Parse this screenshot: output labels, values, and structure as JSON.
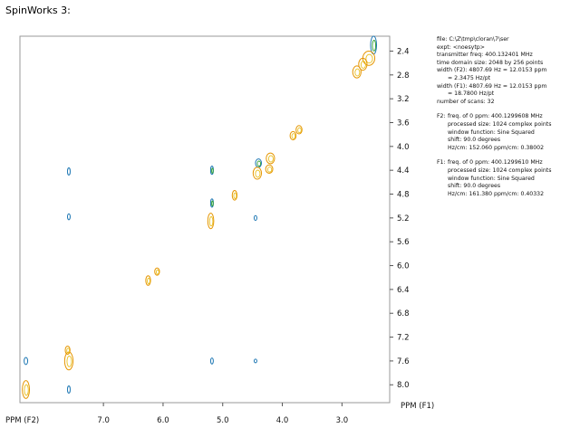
{
  "window": {
    "title": "SpinWorks 3:"
  },
  "colors": {
    "positive": "#1f78b4",
    "positive2": "#2ca02c",
    "negative": "#e69500",
    "negative2": "#e8c020",
    "frame": "#999999"
  },
  "info": {
    "file": "file: C:\\Z\\tmp\\cloran\\7\\ser",
    "expt": "expt: <noesytp>",
    "transmitter": "transmitter freq: 400.132401 MHz",
    "time_domain": "time domain size: 2048 by 256 points",
    "width_f2": "width (F2): 4807.69 Hz = 12.0153 ppm",
    "width_f2_pt": "= 2.3475 Hz/pt",
    "width_f1": "width (F1): 4807.69 Hz = 12.0153 ppm",
    "width_f1_pt": "= 18.7800 Hz/pt",
    "scans": "number of scans: 32",
    "f2": {
      "prefix": "F2:",
      "freq": "freq. of 0 ppm: 400.1299608 MHz",
      "size": "processed size: 1024 complex points",
      "window": "window function: Sine Squared",
      "shift": "shift: 90.0 degrees",
      "hzcm": "Hz/cm: 152.060    ppm/cm: 0.38002"
    },
    "f1": {
      "prefix": "F1:",
      "freq": "freq. of 0 ppm: 400.1299610 MHz",
      "size": "processed size: 1024 complex points",
      "window": "window function: Sine Squared",
      "shift": "shift: 90.0 degrees",
      "hzcm": "Hz/cm: 161.380    ppm/cm: 0.40332"
    }
  },
  "chart_data": {
    "type": "contour",
    "xlabel": "PPM (F2)",
    "ylabel": "PPM (F1)",
    "xlim": [
      8.4,
      2.2
    ],
    "ylim": [
      2.15,
      8.3
    ],
    "xticks": [
      "7.0",
      "6.0",
      "5.0",
      "4.0",
      "3.0"
    ],
    "xtick_values": [
      7.0,
      6.0,
      5.0,
      4.0,
      3.0
    ],
    "yticks": [
      "2.4",
      "2.8",
      "3.2",
      "3.6",
      "4.0",
      "4.4",
      "4.8",
      "5.2",
      "5.6",
      "6.0",
      "6.4",
      "6.8",
      "7.2",
      "7.6",
      "8.0"
    ],
    "ytick_values": [
      2.4,
      2.8,
      3.2,
      3.6,
      4.0,
      4.4,
      4.8,
      5.2,
      5.6,
      6.0,
      6.4,
      6.8,
      7.2,
      7.6,
      8.0
    ],
    "peaks": [
      {
        "x": 2.47,
        "y": 2.3,
        "sign": "pos",
        "rx": 0.05,
        "ry": 0.15
      },
      {
        "x": 2.55,
        "y": 2.52,
        "sign": "neg",
        "rx": 0.1,
        "ry": 0.12
      },
      {
        "x": 2.65,
        "y": 2.62,
        "sign": "neg",
        "rx": 0.07,
        "ry": 0.1
      },
      {
        "x": 2.75,
        "y": 2.75,
        "sign": "neg",
        "rx": 0.07,
        "ry": 0.1
      },
      {
        "x": 3.72,
        "y": 3.72,
        "sign": "neg",
        "rx": 0.05,
        "ry": 0.07
      },
      {
        "x": 3.82,
        "y": 3.82,
        "sign": "neg",
        "rx": 0.05,
        "ry": 0.07
      },
      {
        "x": 4.2,
        "y": 4.2,
        "sign": "neg",
        "rx": 0.07,
        "ry": 0.09
      },
      {
        "x": 4.22,
        "y": 4.38,
        "sign": "neg",
        "rx": 0.06,
        "ry": 0.07
      },
      {
        "x": 4.4,
        "y": 4.28,
        "sign": "pos",
        "rx": 0.05,
        "ry": 0.07
      },
      {
        "x": 4.42,
        "y": 4.45,
        "sign": "neg",
        "rx": 0.07,
        "ry": 0.1
      },
      {
        "x": 4.8,
        "y": 4.82,
        "sign": "neg",
        "rx": 0.04,
        "ry": 0.08
      },
      {
        "x": 5.18,
        "y": 4.4,
        "sign": "pos",
        "rx": 0.02,
        "ry": 0.07
      },
      {
        "x": 5.18,
        "y": 4.95,
        "sign": "pos",
        "rx": 0.02,
        "ry": 0.07
      },
      {
        "x": 5.2,
        "y": 5.25,
        "sign": "neg",
        "rx": 0.05,
        "ry": 0.13
      },
      {
        "x": 4.45,
        "y": 5.2,
        "sign": "pos",
        "rx": 0.02,
        "ry": 0.04
      },
      {
        "x": 6.1,
        "y": 6.1,
        "sign": "neg",
        "rx": 0.04,
        "ry": 0.06
      },
      {
        "x": 6.25,
        "y": 6.25,
        "sign": "neg",
        "rx": 0.04,
        "ry": 0.08
      },
      {
        "x": 7.58,
        "y": 4.42,
        "sign": "pos",
        "rx": 0.02,
        "ry": 0.06
      },
      {
        "x": 7.58,
        "y": 5.18,
        "sign": "pos",
        "rx": 0.02,
        "ry": 0.05
      },
      {
        "x": 7.58,
        "y": 7.6,
        "sign": "neg",
        "rx": 0.07,
        "ry": 0.15
      },
      {
        "x": 7.6,
        "y": 7.42,
        "sign": "neg",
        "rx": 0.04,
        "ry": 0.07
      },
      {
        "x": 7.58,
        "y": 8.08,
        "sign": "pos",
        "rx": 0.02,
        "ry": 0.06
      },
      {
        "x": 5.18,
        "y": 7.6,
        "sign": "pos",
        "rx": 0.02,
        "ry": 0.05
      },
      {
        "x": 4.45,
        "y": 7.6,
        "sign": "pos",
        "rx": 0.015,
        "ry": 0.03
      },
      {
        "x": 8.3,
        "y": 7.6,
        "sign": "pos",
        "rx": 0.03,
        "ry": 0.06
      },
      {
        "x": 8.3,
        "y": 8.08,
        "sign": "neg",
        "rx": 0.06,
        "ry": 0.15
      }
    ]
  }
}
